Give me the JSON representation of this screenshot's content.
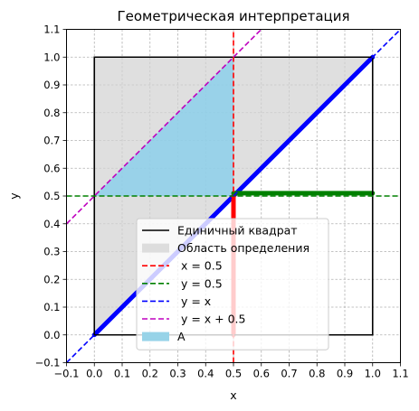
{
  "chart_data": {
    "type": "line",
    "title": "Геометрическая интерпретация",
    "xlabel": "x",
    "ylabel": "y",
    "xlim": [
      -0.1,
      1.1
    ],
    "ylim": [
      -0.1,
      1.1
    ],
    "grid": true,
    "legend_position": "lower-center",
    "xticks": [
      -0.1,
      0.0,
      0.1,
      0.2,
      0.3,
      0.4,
      0.5,
      0.6,
      0.7,
      0.8,
      0.9,
      1.0,
      1.1
    ],
    "yticks": [
      -0.1,
      0.0,
      0.1,
      0.2,
      0.3,
      0.4,
      0.5,
      0.6,
      0.7,
      0.8,
      0.9,
      1.0,
      1.1
    ],
    "xtick_labels": [
      "−0.1",
      "0.0",
      "0.1",
      "0.2",
      "0.3",
      "0.4",
      "0.5",
      "0.6",
      "0.7",
      "0.8",
      "0.9",
      "1.0",
      "1.1"
    ],
    "ytick_labels": [
      "−0.1",
      "0.0",
      "0.1",
      "0.2",
      "0.3",
      "0.4",
      "0.5",
      "0.6",
      "0.7",
      "0.8",
      "0.9",
      "1.0",
      "1.1"
    ],
    "domain_region": {
      "name": "Область определения",
      "color": "#d3d3d3",
      "points": [
        [
          0,
          0
        ],
        [
          1,
          1
        ],
        [
          0,
          1
        ]
      ]
    },
    "region_A": {
      "name": "A",
      "color": "#87ceeb",
      "points": [
        [
          0,
          0.5
        ],
        [
          0.5,
          0.5
        ],
        [
          0.5,
          1
        ]
      ]
    },
    "series": [
      {
        "name": "Единичный квадрат",
        "style": "solid",
        "color": "#000000",
        "x": [
          0,
          1,
          1,
          0,
          0
        ],
        "y": [
          0,
          0,
          1,
          1,
          0
        ]
      },
      {
        "name": " x = 0.5",
        "style": "dashed",
        "color": "#ff0000",
        "x": [
          0.5,
          0.5
        ],
        "y": [
          -0.1,
          1.1
        ]
      },
      {
        "name": " y = 0.5",
        "style": "dashed",
        "color": "#008000",
        "x": [
          -0.1,
          1.1
        ],
        "y": [
          0.5,
          0.5
        ]
      },
      {
        "name": " y = x",
        "style": "dashed",
        "color": "#0000ff",
        "x": [
          -0.1,
          1.1
        ],
        "y": [
          -0.1,
          1.1
        ]
      },
      {
        "name": " y = x + 0.5",
        "style": "dashed",
        "color": "#bf00bf",
        "x": [
          -0.1,
          0.6
        ],
        "y": [
          0.4,
          1.1
        ]
      }
    ],
    "boundary_segments": [
      {
        "name": "boundary-diagonal",
        "color": "#0000ff",
        "x": [
          0,
          1
        ],
        "y": [
          0,
          1
        ]
      },
      {
        "name": "boundary-vertical",
        "color": "#ff0000",
        "x": [
          0.5,
          0.5
        ],
        "y": [
          0,
          0.5
        ]
      },
      {
        "name": "boundary-horizontal",
        "color": "#008000",
        "x": [
          0.5,
          1
        ],
        "y": [
          0.51,
          0.51
        ]
      }
    ],
    "legend": [
      {
        "label": "Единичный квадрат",
        "kind": "line",
        "color": "#000000",
        "dash": false
      },
      {
        "label": "Область определения",
        "kind": "patch",
        "color": "#dddddd"
      },
      {
        "label": " x = 0.5",
        "kind": "line",
        "color": "#ff0000",
        "dash": true
      },
      {
        "label": " y = 0.5",
        "kind": "line",
        "color": "#008000",
        "dash": true
      },
      {
        "label": " y = x",
        "kind": "line",
        "color": "#0000ff",
        "dash": true
      },
      {
        "label": " y = x + 0.5",
        "kind": "line",
        "color": "#bf00bf",
        "dash": true
      },
      {
        "label": "A",
        "kind": "patch",
        "color": "#97d3e8"
      }
    ]
  }
}
